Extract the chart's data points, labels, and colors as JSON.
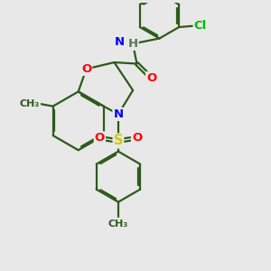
{
  "bg_color": "#e8e8e8",
  "bond_color": "#2d5a1b",
  "bond_width": 1.6,
  "dbo": 0.06,
  "atom_colors": {
    "O": "#ff0000",
    "N": "#0000ff",
    "S": "#cccc00",
    "Cl": "#00bb00",
    "H": "#557755",
    "C": "#2d5a1b"
  },
  "fs": 9.5,
  "fs_small": 8.0
}
